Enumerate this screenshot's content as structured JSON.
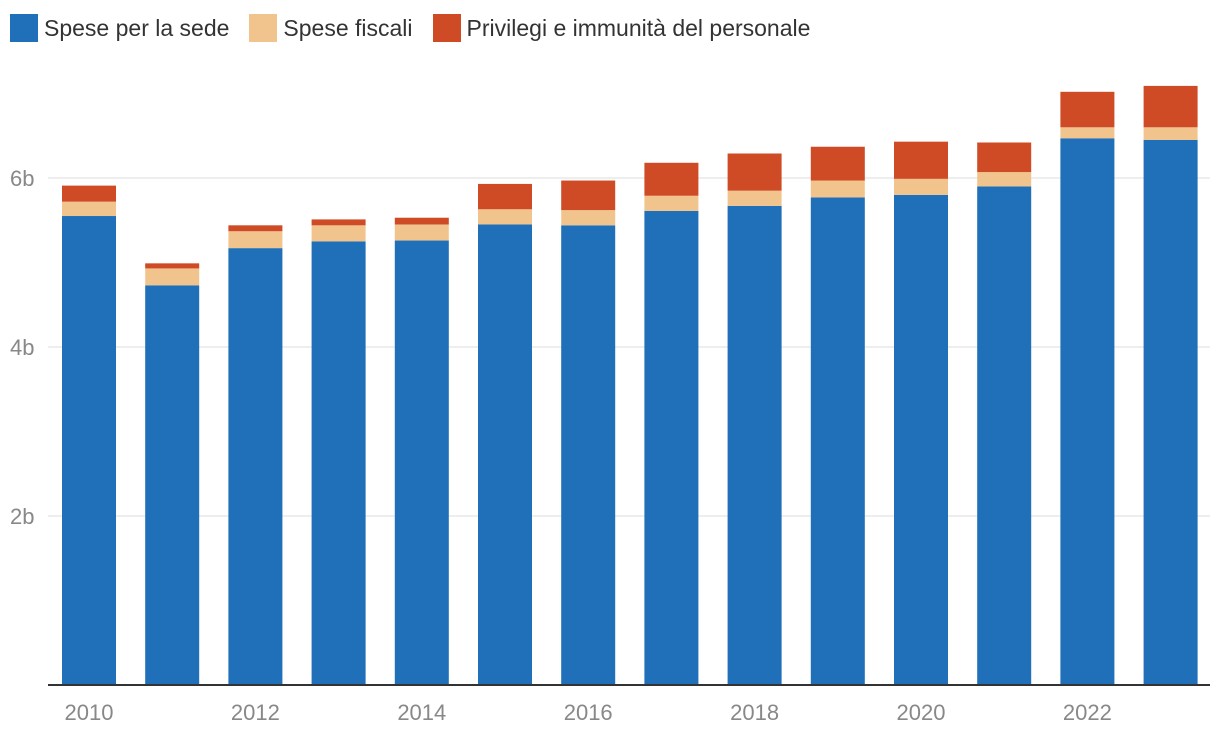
{
  "chart_data": {
    "type": "bar",
    "stacked": true,
    "title": "",
    "xlabel": "",
    "ylabel": "",
    "ylim": [
      0,
      7.5
    ],
    "grid": true,
    "legend_position": "top-left",
    "categories": [
      "2010",
      "2011",
      "2012",
      "2013",
      "2014",
      "2015",
      "2016",
      "2017",
      "2018",
      "2019",
      "2020",
      "2021",
      "2022",
      "2023"
    ],
    "x_tick_labels": [
      "2010",
      "2012",
      "2014",
      "2016",
      "2018",
      "2020",
      "2022"
    ],
    "y_ticks": [
      {
        "value": 2,
        "label": "2b"
      },
      {
        "value": 4,
        "label": "4b"
      },
      {
        "value": 6,
        "label": "6b"
      }
    ],
    "series": [
      {
        "name": "Spese per la sede",
        "color": "#1F6FB9",
        "values": [
          5.55,
          4.73,
          5.17,
          5.25,
          5.26,
          5.45,
          5.44,
          5.61,
          5.67,
          5.77,
          5.8,
          5.9,
          6.47,
          6.45
        ]
      },
      {
        "name": "Spese fiscali",
        "color": "#F1C48D",
        "values": [
          0.17,
          0.2,
          0.2,
          0.19,
          0.19,
          0.18,
          0.18,
          0.18,
          0.18,
          0.2,
          0.19,
          0.17,
          0.13,
          0.15
        ]
      },
      {
        "name": "Privilegi e immunità del personale",
        "color": "#CF4B26",
        "values": [
          0.19,
          0.06,
          0.07,
          0.07,
          0.08,
          0.3,
          0.35,
          0.39,
          0.44,
          0.4,
          0.44,
          0.35,
          0.42,
          0.49
        ]
      }
    ]
  }
}
